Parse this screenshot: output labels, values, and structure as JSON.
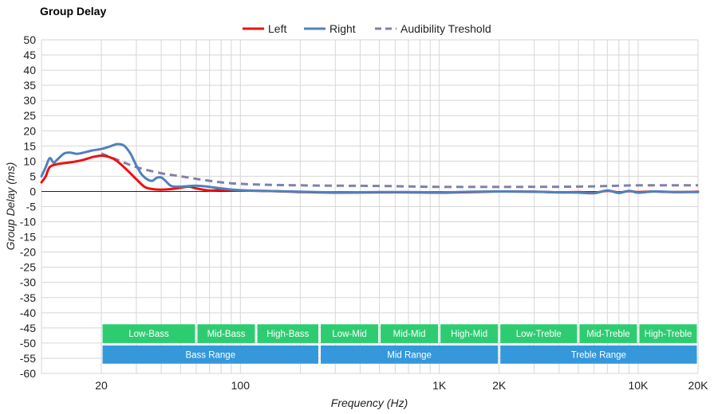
{
  "chart_data": {
    "type": "line",
    "title": "Group Delay",
    "xlabel": "Frequency (Hz)",
    "ylabel": "Group Delay (ms)",
    "x_scale": "log",
    "xlim": [
      10,
      20000
    ],
    "ylim": [
      -60,
      50
    ],
    "y_ticks": [
      50,
      45,
      40,
      35,
      30,
      25,
      20,
      15,
      10,
      5,
      0,
      -5,
      -10,
      -15,
      -20,
      -25,
      -30,
      -35,
      -40,
      -45,
      -50,
      -55,
      -60
    ],
    "x_ticks": [
      {
        "value": 20,
        "label": "20"
      },
      {
        "value": 100,
        "label": "100"
      },
      {
        "value": 1000,
        "label": "1K"
      },
      {
        "value": 2000,
        "label": "2K"
      },
      {
        "value": 10000,
        "label": "10K"
      },
      {
        "value": 20000,
        "label": "20K"
      }
    ],
    "grid": true,
    "legend": "top-center",
    "series": [
      {
        "name": "Left",
        "color": "#ee1111",
        "style": "solid",
        "points": [
          [
            10,
            3
          ],
          [
            10.5,
            5
          ],
          [
            11,
            8
          ],
          [
            12,
            9
          ],
          [
            14,
            9.6
          ],
          [
            16,
            10.3
          ],
          [
            18,
            11.3
          ],
          [
            20,
            11.8
          ],
          [
            22,
            11.3
          ],
          [
            24,
            10
          ],
          [
            27,
            7
          ],
          [
            30,
            4
          ],
          [
            33,
            1.5
          ],
          [
            36,
            0.8
          ],
          [
            40,
            0.6
          ],
          [
            45,
            0.8
          ],
          [
            50,
            1.2
          ],
          [
            55,
            1.6
          ],
          [
            60,
            1
          ],
          [
            70,
            0.3
          ],
          [
            80,
            0.5
          ],
          [
            100,
            0.3
          ],
          [
            150,
            0.1
          ],
          [
            200,
            -0.2
          ],
          [
            300,
            -0.4
          ],
          [
            500,
            -0.3
          ],
          [
            700,
            -0.3
          ],
          [
            1000,
            -0.4
          ],
          [
            1500,
            -0.2
          ],
          [
            2000,
            0
          ],
          [
            3000,
            -0.1
          ],
          [
            4000,
            -0.3
          ],
          [
            5000,
            -0.2
          ],
          [
            6000,
            -0.4
          ],
          [
            7000,
            0.2
          ],
          [
            8000,
            -0.3
          ],
          [
            9000,
            0.1
          ],
          [
            10000,
            -0.2
          ],
          [
            12000,
            0
          ],
          [
            15000,
            -0.2
          ],
          [
            20000,
            -0.1
          ]
        ]
      },
      {
        "name": "Right",
        "color": "#4f81bd",
        "style": "solid",
        "points": [
          [
            10,
            5
          ],
          [
            10.5,
            8
          ],
          [
            11,
            11
          ],
          [
            11.5,
            9.5
          ],
          [
            12,
            10.5
          ],
          [
            13,
            12.5
          ],
          [
            14,
            12.8
          ],
          [
            15,
            12.4
          ],
          [
            16,
            12.7
          ],
          [
            18,
            13.5
          ],
          [
            20,
            14
          ],
          [
            22,
            14.8
          ],
          [
            24,
            15.6
          ],
          [
            26,
            15.1
          ],
          [
            28,
            12.5
          ],
          [
            30,
            8.5
          ],
          [
            32,
            5.5
          ],
          [
            34,
            4
          ],
          [
            36,
            3.5
          ],
          [
            38,
            4.5
          ],
          [
            40,
            4.6
          ],
          [
            42,
            3.5
          ],
          [
            45,
            1.8
          ],
          [
            50,
            1.6
          ],
          [
            60,
            1.9
          ],
          [
            70,
            1.5
          ],
          [
            80,
            1
          ],
          [
            100,
            0.4
          ],
          [
            130,
            0.2
          ],
          [
            200,
            -0.1
          ],
          [
            300,
            -0.3
          ],
          [
            500,
            -0.2
          ],
          [
            700,
            -0.2
          ],
          [
            1000,
            -0.3
          ],
          [
            1500,
            -0.1
          ],
          [
            2000,
            0
          ],
          [
            3000,
            -0.1
          ],
          [
            4000,
            -0.3
          ],
          [
            5000,
            -0.4
          ],
          [
            6000,
            -0.6
          ],
          [
            7000,
            0.3
          ],
          [
            8000,
            -0.5
          ],
          [
            9000,
            0.2
          ],
          [
            10000,
            -0.4
          ],
          [
            12000,
            0
          ],
          [
            15000,
            -0.2
          ],
          [
            20000,
            -0.2
          ]
        ]
      },
      {
        "name": "Audibility Treshold",
        "color": "#8080aa",
        "style": "dashed",
        "points": [
          [
            20,
            12.5
          ],
          [
            25,
            10
          ],
          [
            30,
            8
          ],
          [
            40,
            6
          ],
          [
            50,
            5
          ],
          [
            70,
            3.5
          ],
          [
            100,
            2.5
          ],
          [
            200,
            2
          ],
          [
            500,
            1.8
          ],
          [
            1000,
            1.5
          ],
          [
            2000,
            1.5
          ],
          [
            5000,
            1.6
          ],
          [
            10000,
            2
          ],
          [
            20000,
            2
          ]
        ]
      }
    ],
    "range_bands": {
      "sub": [
        {
          "label": "Low-Bass",
          "from": 20,
          "to": 60
        },
        {
          "label": "Mid-Bass",
          "from": 60,
          "to": 120
        },
        {
          "label": "High-Bass",
          "from": 120,
          "to": 250
        },
        {
          "label": "Low-Mid",
          "from": 250,
          "to": 500
        },
        {
          "label": "Mid-Mid",
          "from": 500,
          "to": 1000
        },
        {
          "label": "High-Mid",
          "from": 1000,
          "to": 2000
        },
        {
          "label": "Low-Treble",
          "from": 2000,
          "to": 5000
        },
        {
          "label": "Mid-Treble",
          "from": 5000,
          "to": 10000
        },
        {
          "label": "High-Treble",
          "from": 10000,
          "to": 20000
        }
      ],
      "main": [
        {
          "label": "Bass Range",
          "from": 20,
          "to": 250
        },
        {
          "label": "Mid Range",
          "from": 250,
          "to": 2000
        },
        {
          "label": "Treble Range",
          "from": 2000,
          "to": 20000
        }
      ],
      "sub_color": "#2ecc71",
      "main_color": "#3498db"
    }
  }
}
